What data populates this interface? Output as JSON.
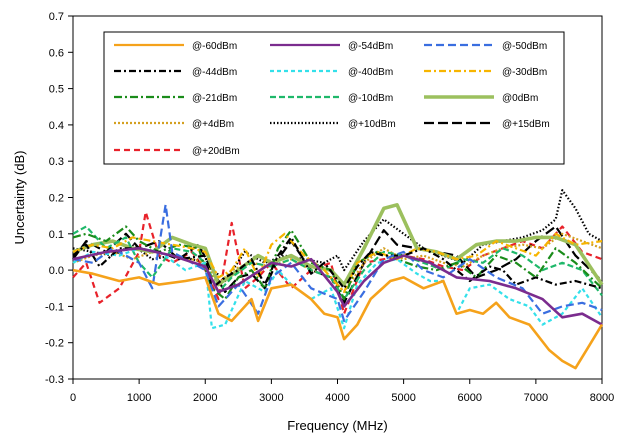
{
  "chart_data": {
    "type": "line",
    "title": "",
    "xlabel": "Frequency (MHz)",
    "ylabel": "Uncertainty (dB)",
    "xlim": [
      0,
      8000
    ],
    "ylim": [
      -0.3,
      0.7
    ],
    "xticks": [
      "0",
      "1000",
      "2000",
      "3000",
      "4000",
      "5000",
      "6000",
      "7000",
      "8000"
    ],
    "yticks": [
      "-0.3",
      "-0.2",
      "-0.1",
      "0.0",
      "0.1",
      "0.2",
      "0.3",
      "0.4",
      "0.5",
      "0.6",
      "0.7"
    ],
    "grid": false,
    "legend_position": "top, inside plot",
    "series": [
      {
        "name": "@-60dBm",
        "color": "#f5a21b",
        "dash": "solid",
        "x": [
          0,
          300,
          700,
          1000,
          1300,
          1700,
          2000,
          2200,
          2400,
          2700,
          2800,
          3000,
          3300,
          3600,
          3800,
          4000,
          4100,
          4300,
          4500,
          4800,
          5000,
          5300,
          5600,
          5800,
          6000,
          6200,
          6400,
          6600,
          6900,
          7200,
          7400,
          7600,
          7800,
          8000
        ],
        "y": [
          0.0,
          -0.01,
          -0.03,
          -0.02,
          -0.04,
          -0.03,
          -0.02,
          -0.12,
          -0.14,
          -0.08,
          -0.14,
          -0.05,
          -0.04,
          -0.08,
          -0.12,
          -0.13,
          -0.19,
          -0.15,
          -0.08,
          -0.03,
          -0.02,
          -0.05,
          -0.03,
          -0.12,
          -0.11,
          -0.12,
          -0.09,
          -0.13,
          -0.15,
          -0.22,
          -0.25,
          -0.27,
          -0.21,
          -0.15
        ]
      },
      {
        "name": "@-54dBm",
        "color": "#7b2c8e",
        "dash": "solid",
        "x": [
          0,
          500,
          1000,
          1500,
          2000,
          2200,
          2500,
          3000,
          3300,
          3600,
          4000,
          4100,
          4400,
          4700,
          5000,
          5400,
          5800,
          6300,
          6700,
          7100,
          7400,
          7700,
          8000
        ],
        "y": [
          0.03,
          0.05,
          0.06,
          0.04,
          0.01,
          -0.06,
          -0.04,
          0.02,
          0.01,
          0.03,
          -0.06,
          -0.1,
          -0.03,
          0.02,
          0.04,
          0.02,
          -0.02,
          -0.03,
          -0.05,
          -0.08,
          -0.13,
          -0.12,
          -0.15
        ]
      },
      {
        "name": "@-50dBm",
        "color": "#3a6ee0",
        "dash": "8,4",
        "x": [
          0,
          300,
          600,
          1000,
          1200,
          1400,
          1500,
          1700,
          2000,
          2200,
          2500,
          2800,
          3000,
          3300,
          3600,
          4000,
          4100,
          4400,
          4700,
          5000,
          5300,
          5600,
          6000,
          6400,
          6800,
          7100,
          7400,
          7700,
          8000
        ],
        "y": [
          0.03,
          0.02,
          0.06,
          0.02,
          -0.05,
          0.18,
          0.05,
          0.03,
          0.0,
          -0.1,
          -0.04,
          -0.12,
          -0.02,
          0.02,
          -0.05,
          -0.08,
          -0.14,
          -0.06,
          0.03,
          0.05,
          0.0,
          -0.02,
          0.03,
          -0.02,
          -0.05,
          -0.12,
          -0.1,
          -0.09,
          -0.11
        ]
      },
      {
        "name": "@-44dBm",
        "color": "#000000",
        "dash": "7,3,2,3",
        "x": [
          0,
          200,
          400,
          700,
          1000,
          1300,
          1600,
          2000,
          2100,
          2300,
          2500,
          2700,
          2900,
          3100,
          3300,
          3600,
          3800,
          4100,
          4300,
          4500,
          4700,
          5000,
          5300,
          5600,
          6000,
          6300,
          6500,
          6700,
          7000,
          7300,
          7600,
          8000
        ],
        "y": [
          0.04,
          0.07,
          0.01,
          0.06,
          0.06,
          0.05,
          0.03,
          0.04,
          -0.05,
          -0.02,
          0.0,
          0.03,
          -0.04,
          0.04,
          0.09,
          -0.01,
          0.02,
          -0.05,
          0.01,
          0.05,
          0.04,
          0.04,
          0.06,
          0.03,
          -0.03,
          0.01,
          0.0,
          -0.04,
          -0.02,
          -0.04,
          -0.03,
          -0.05
        ]
      },
      {
        "name": "@-40dBm",
        "color": "#33e0ea",
        "dash": "4,3",
        "x": [
          0,
          300,
          700,
          1000,
          1300,
          1700,
          2000,
          2100,
          2300,
          2600,
          2900,
          3100,
          3300,
          3600,
          3900,
          4100,
          4300,
          4600,
          4900,
          5200,
          5400,
          5600,
          5800,
          6000,
          6300,
          6600,
          6900,
          7100,
          7400,
          7700,
          8000
        ],
        "y": [
          0.02,
          0.05,
          0.04,
          0.06,
          0.05,
          0.0,
          0.02,
          -0.16,
          -0.15,
          -0.03,
          -0.06,
          0.0,
          -0.04,
          -0.08,
          -0.05,
          -0.16,
          -0.04,
          0.02,
          0.03,
          -0.01,
          -0.03,
          -0.03,
          -0.12,
          -0.05,
          -0.04,
          -0.08,
          -0.1,
          -0.15,
          -0.12,
          -0.05,
          -0.13
        ]
      },
      {
        "name": "@-30dBm",
        "color": "#f7b500",
        "dash": "7,3,2,3",
        "x": [
          0,
          300,
          600,
          900,
          1200,
          1500,
          1800,
          2000,
          2200,
          2400,
          2600,
          2800,
          3000,
          3200,
          3500,
          3800,
          4100,
          4300,
          4600,
          4900,
          5200,
          5500,
          5800,
          6100,
          6400,
          6700,
          7000,
          7300,
          7600,
          8000
        ],
        "y": [
          0.05,
          0.07,
          0.06,
          0.09,
          0.08,
          0.07,
          0.06,
          0.05,
          -0.02,
          0.0,
          0.06,
          -0.02,
          0.07,
          0.1,
          0.04,
          0.0,
          -0.06,
          0.02,
          0.05,
          0.03,
          0.06,
          0.05,
          0.03,
          0.04,
          0.08,
          0.06,
          0.04,
          0.1,
          0.07,
          0.08
        ]
      },
      {
        "name": "@-21dBm",
        "color": "#1a8c1a",
        "dash": "8,3,2,3",
        "x": [
          0,
          200,
          500,
          800,
          1000,
          1300,
          1600,
          1900,
          2100,
          2300,
          2500,
          2700,
          2900,
          3100,
          3300,
          3600,
          3900,
          4100,
          4300,
          4600,
          4900,
          5200,
          5500,
          5800,
          6100,
          6400,
          6700,
          7000,
          7300,
          7600,
          8000
        ],
        "y": [
          0.09,
          0.1,
          0.08,
          0.12,
          0.08,
          0.05,
          0.07,
          0.06,
          -0.05,
          -0.08,
          -0.02,
          0.0,
          -0.05,
          0.06,
          0.11,
          0.02,
          0.0,
          -0.08,
          0.02,
          0.05,
          0.03,
          0.01,
          0.0,
          0.02,
          -0.02,
          0.04,
          0.02,
          -0.02,
          0.06,
          0.02,
          -0.05
        ]
      },
      {
        "name": "@-10dBm",
        "color": "#1fb86a",
        "dash": "6,3",
        "x": [
          0,
          200,
          500,
          800,
          1000,
          1200,
          1500,
          1800,
          2000,
          2200,
          2400,
          2700,
          3000,
          3300,
          3600,
          3900,
          4100,
          4400,
          4700,
          5000,
          5300,
          5600,
          5900,
          6200,
          6500,
          6800,
          7100,
          7400,
          7700,
          8000
        ],
        "y": [
          0.1,
          0.12,
          0.06,
          0.09,
          0.02,
          -0.02,
          0.06,
          0.05,
          0.02,
          -0.06,
          -0.02,
          0.02,
          0.01,
          0.03,
          0.0,
          -0.02,
          -0.08,
          0.0,
          0.05,
          0.04,
          0.02,
          0.0,
          0.03,
          0.02,
          0.06,
          0.04,
          0.0,
          0.02,
          0.0,
          -0.07
        ]
      },
      {
        "name": "@0dBm",
        "color": "#9cc05e",
        "dash": "solid",
        "x": [
          0,
          300,
          600,
          900,
          1200,
          1500,
          1800,
          2000,
          2200,
          2500,
          2800,
          3000,
          3300,
          3600,
          3900,
          4100,
          4400,
          4700,
          4900,
          5200,
          5500,
          5800,
          6100,
          6400,
          6700,
          7000,
          7300,
          7600,
          8000
        ],
        "y": [
          0.05,
          0.07,
          0.08,
          0.06,
          0.05,
          0.09,
          0.07,
          0.06,
          -0.04,
          0.0,
          0.04,
          0.02,
          0.04,
          0.01,
          0.0,
          -0.04,
          0.06,
          0.17,
          0.18,
          0.06,
          0.05,
          0.03,
          0.07,
          0.08,
          0.08,
          0.09,
          0.09,
          0.07,
          -0.04
        ]
      },
      {
        "name": "@+4dBm",
        "color": "#d4a020",
        "dash": "2,2",
        "x": [
          0,
          300,
          600,
          900,
          1200,
          1500,
          1800,
          2000,
          2200,
          2400,
          2700,
          3000,
          3300,
          3600,
          3900,
          4100,
          4400,
          4700,
          5000,
          5300,
          5600,
          5900,
          6200,
          6500,
          6800,
          7100,
          7400,
          7700,
          8000
        ],
        "y": [
          0.02,
          0.04,
          0.05,
          0.03,
          0.05,
          0.04,
          0.03,
          0.02,
          -0.04,
          0.0,
          0.02,
          0.01,
          0.03,
          0.0,
          -0.02,
          -0.06,
          0.02,
          0.06,
          0.03,
          0.04,
          0.02,
          0.01,
          0.04,
          0.06,
          0.07,
          0.06,
          0.1,
          0.08,
          0.06
        ]
      },
      {
        "name": "@+10dBm",
        "color": "#000000",
        "dash": "1.5,2",
        "x": [
          0,
          300,
          600,
          900,
          1200,
          1500,
          1800,
          2000,
          2300,
          2600,
          2900,
          3200,
          3500,
          3800,
          4000,
          4100,
          4400,
          4700,
          5000,
          5300,
          5600,
          5900,
          6200,
          6500,
          6800,
          7100,
          7300,
          7400,
          7600,
          7800,
          8000
        ],
        "y": [
          0.06,
          0.05,
          0.04,
          0.07,
          0.03,
          0.04,
          0.03,
          0.02,
          -0.03,
          0.05,
          0.02,
          0.04,
          0.03,
          0.02,
          0.04,
          0.0,
          0.08,
          0.14,
          0.1,
          0.06,
          0.04,
          0.02,
          0.07,
          0.08,
          0.09,
          0.11,
          0.14,
          0.22,
          0.17,
          0.1,
          0.08
        ]
      },
      {
        "name": "@+15dBm",
        "color": "#000000",
        "dash": "10,4",
        "x": [
          0,
          200,
          500,
          800,
          1000,
          1300,
          1600,
          1900,
          2100,
          2300,
          2500,
          2700,
          2900,
          3100,
          3300,
          3600,
          3900,
          4100,
          4400,
          4700,
          4900,
          5200,
          5500,
          5800,
          6100,
          6400,
          6700,
          7000,
          7300,
          7600,
          8000
        ],
        "y": [
          0.03,
          0.08,
          0.05,
          0.1,
          0.06,
          0.08,
          0.03,
          0.07,
          0.0,
          -0.06,
          -0.02,
          -0.01,
          -0.05,
          0.03,
          0.08,
          0.0,
          -0.02,
          -0.09,
          0.02,
          0.11,
          0.07,
          0.06,
          0.05,
          0.04,
          -0.02,
          0.0,
          0.03,
          0.08,
          0.12,
          0.04,
          -0.03
        ]
      },
      {
        "name": "@+20dBm",
        "color": "#e8222a",
        "dash": "6,4",
        "x": [
          0,
          200,
          400,
          700,
          1000,
          1100,
          1300,
          1500,
          1800,
          2000,
          2200,
          2400,
          2600,
          2800,
          3000,
          3300,
          3600,
          3900,
          4100,
          4400,
          4700,
          5000,
          5300,
          5600,
          5900,
          6200,
          6500,
          6800,
          7100,
          7400,
          7700,
          8000
        ],
        "y": [
          -0.02,
          0.02,
          -0.09,
          -0.05,
          0.05,
          0.16,
          0.04,
          0.02,
          0.05,
          0.0,
          -0.08,
          0.13,
          -0.05,
          -0.02,
          0.02,
          -0.05,
          0.0,
          0.02,
          -0.12,
          0.02,
          0.03,
          0.04,
          0.03,
          0.01,
          0.0,
          0.04,
          0.06,
          0.08,
          0.06,
          0.12,
          0.05,
          0.03
        ]
      }
    ]
  }
}
